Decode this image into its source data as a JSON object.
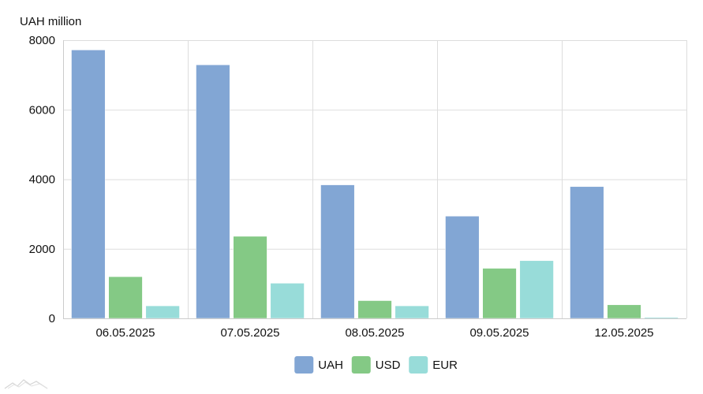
{
  "chart_data": {
    "type": "bar",
    "unit_label": "UAH million",
    "categories": [
      "06.05.2025",
      "07.05.2025",
      "08.05.2025",
      "09.05.2025",
      "12.05.2025"
    ],
    "series": [
      {
        "name": "UAH",
        "color": "#82a6d4",
        "values": [
          7720,
          7290,
          3840,
          2940,
          3790
        ]
      },
      {
        "name": "USD",
        "color": "#84c985",
        "values": [
          1200,
          2360,
          510,
          1440,
          390
        ]
      },
      {
        "name": "EUR",
        "color": "#98dcd9",
        "values": [
          360,
          1010,
          360,
          1660,
          30
        ]
      }
    ],
    "ylim": [
      0,
      8000
    ],
    "yticks": [
      0,
      2000,
      4000,
      6000,
      8000
    ],
    "grid": true,
    "legend_position": "bottom"
  }
}
